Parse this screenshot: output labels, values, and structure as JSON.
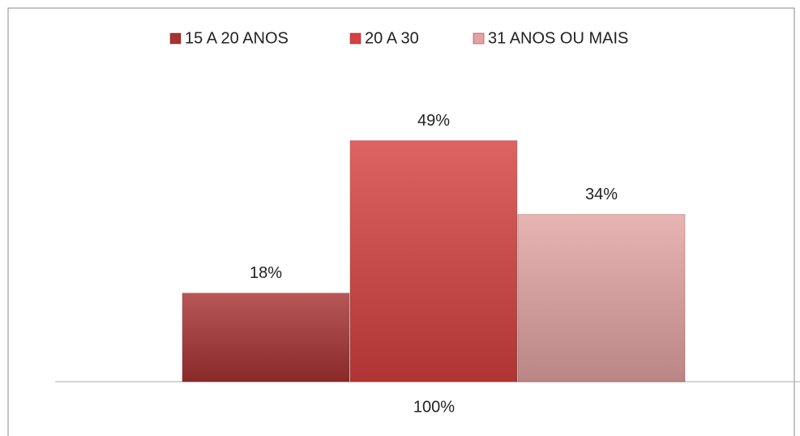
{
  "chart_data": {
    "type": "bar",
    "categories": [
      "100%"
    ],
    "series": [
      {
        "name": "15 A 20 ANOS",
        "color": "#a83232",
        "values": [
          18
        ],
        "value_labels": [
          "18%"
        ]
      },
      {
        "name": "20 A 30",
        "color": "#d64040",
        "values": [
          49
        ],
        "value_labels": [
          "49%"
        ]
      },
      {
        "name": "31 ANOS OU MAIS",
        "color": "#e2a3a3",
        "values": [
          34
        ],
        "value_labels": [
          "34%"
        ]
      }
    ],
    "legend": "top"
  }
}
